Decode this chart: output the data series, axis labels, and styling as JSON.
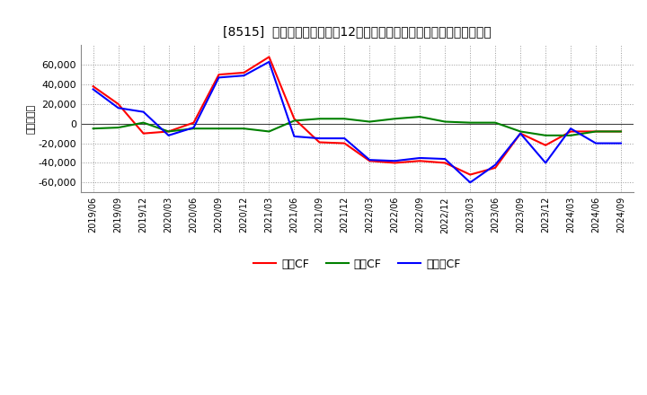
{
  "title": "[8515]  キャッシュフローの12か月移動合計の対前年同期増減額の推移",
  "ylabel": "（百万円）",
  "background_color": "#ffffff",
  "plot_bg_color": "#ffffff",
  "grid_color": "#999999",
  "ylim": [
    -70000,
    80000
  ],
  "yticks": [
    -60000,
    -40000,
    -20000,
    0,
    20000,
    40000,
    60000
  ],
  "x_labels": [
    "2019/06",
    "2019/09",
    "2019/12",
    "2020/03",
    "2020/06",
    "2020/09",
    "2020/12",
    "2021/03",
    "2021/06",
    "2021/09",
    "2021/12",
    "2022/03",
    "2022/06",
    "2022/09",
    "2022/12",
    "2023/03",
    "2023/06",
    "2023/09",
    "2023/12",
    "2024/03",
    "2024/06",
    "2024/09"
  ],
  "operating_cf": [
    38000,
    20000,
    -10000,
    -8000,
    1000,
    50000,
    52000,
    68000,
    5000,
    -19000,
    -20000,
    -38000,
    -40000,
    -38000,
    -40000,
    -52000,
    -45000,
    -10000,
    -22000,
    -8000,
    -8000,
    -8000
  ],
  "investing_cf": [
    -5000,
    -4000,
    1000,
    -8000,
    -5000,
    -5000,
    -5000,
    -8000,
    3000,
    5000,
    5000,
    2000,
    5000,
    7000,
    2000,
    1000,
    1000,
    -8000,
    -12000,
    -12000,
    -8000,
    -8000
  ],
  "free_cf": [
    35000,
    16000,
    12000,
    -12000,
    -4000,
    47000,
    49000,
    63000,
    -13000,
    -15000,
    -15000,
    -37000,
    -38000,
    -35000,
    -36000,
    -60000,
    -42000,
    -10000,
    -40000,
    -5000,
    -20000,
    -20000
  ],
  "line_colors": {
    "operating": "#ff0000",
    "investing": "#008000",
    "free": "#0000ff"
  },
  "line_width": 1.5,
  "legend_labels": [
    "営業CF",
    "投資CF",
    "フリーCF"
  ]
}
